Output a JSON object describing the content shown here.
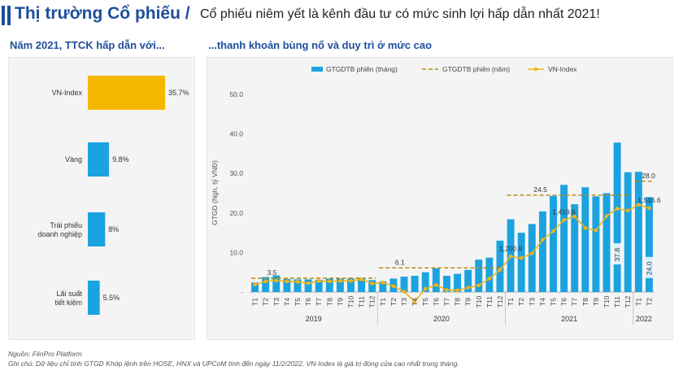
{
  "header": {
    "title": "Thị trường Cổ phiếu /",
    "subtitle": "Cổ phiếu niêm yết là kênh đầu tư có mức sinh lợi hấp dẫn nhất 2021!"
  },
  "left_panel": {
    "title": "Năm 2021, TTCK hấp dẫn với..."
  },
  "right_panel": {
    "title": "...thanh khoản bùng nổ và duy trì ở mức cao"
  },
  "footer": {
    "source": "Nguồn: FiinPro Platform",
    "note": "Ghi chú: Dữ liệu chỉ tính GTGD Khớp lệnh trên HOSE, HNX và UPCoM tính đến ngày 11/2/2022, VN-Index là giá trị đóng cửa cao nhất trong tháng."
  },
  "colors": {
    "accent": "#1f4e9c",
    "bar_blue": "#1aa3e0",
    "bar_gold": "#f5b800",
    "line_gold": "#f0b31b",
    "dash": "#b8860b"
  },
  "chart_data": [
    {
      "type": "bar",
      "orientation": "horizontal",
      "categories": [
        "VN-Index",
        "Vàng",
        "Trái phiếu doanh nghiệp",
        "Lãi suất tiết kiệm"
      ],
      "values": [
        35.7,
        9.8,
        8,
        5.5
      ],
      "value_labels": [
        "35.7%",
        "9.8%",
        "8%",
        "5.5%"
      ],
      "highlight": "VN-Index"
    },
    {
      "type": "bar",
      "ylabel": "GTGD (Ngh. tỷ VNĐ)",
      "ylim": [
        0,
        50
      ],
      "yticks": [
        "-",
        "10.0",
        "20.0",
        "30.0",
        "40.0",
        "50.0"
      ],
      "months": [
        "T1",
        "T2",
        "T3",
        "T4",
        "T5",
        "T6",
        "T7",
        "T8",
        "T9",
        "T10",
        "T11",
        "T12",
        "T1",
        "T2",
        "T3",
        "T4",
        "T5",
        "T6",
        "T7",
        "T8",
        "T9",
        "T10",
        "T11",
        "T12",
        "T1",
        "T2",
        "T3",
        "T4",
        "T5",
        "T6",
        "T7",
        "T8",
        "T9",
        "T10",
        "T11",
        "T12",
        "T1",
        "T2"
      ],
      "years": [
        {
          "label": "2019",
          "start": 0,
          "end": 11
        },
        {
          "label": "2020",
          "start": 12,
          "end": 23
        },
        {
          "label": "2021",
          "start": 24,
          "end": 35
        },
        {
          "label": "2022",
          "start": 36,
          "end": 37
        }
      ],
      "legend": [
        "GTGDTB phiên (tháng)",
        "GTGDTB phiên (năm)",
        "VN-Index"
      ],
      "monthly_value": [
        2.4,
        3.8,
        4.2,
        3.3,
        3.2,
        3.2,
        3.1,
        3.4,
        3.4,
        3.4,
        3.6,
        3.0,
        2.7,
        3.4,
        3.9,
        4.1,
        5.0,
        6.0,
        4.1,
        4.6,
        5.6,
        8.2,
        8.7,
        13.0,
        18.4,
        15.0,
        17.2,
        20.4,
        24.3,
        27.1,
        22.2,
        26.5,
        24.2,
        25.0,
        37.8,
        30.3,
        30.4,
        24.0
      ],
      "yearly_avg": [
        {
          "start": 0,
          "end": 11,
          "value": 3.5,
          "label": "3.5"
        },
        {
          "start": 12,
          "end": 23,
          "value": 6.1,
          "label": "6.1"
        },
        {
          "start": 24,
          "end": 35,
          "value": 24.5,
          "label": "24.5"
        },
        {
          "start": 36,
          "end": 37,
          "value": 28.0,
          "label": "28.0"
        }
      ],
      "vnindex": [
        1.9,
        2.7,
        2.9,
        2.7,
        2.6,
        2.2,
        2.8,
        2.7,
        2.8,
        2.8,
        3.2,
        2.1,
        2.4,
        1.5,
        0.1,
        -2.4,
        0.8,
        1.8,
        0.5,
        0.4,
        1.1,
        1.7,
        3.4,
        5.6,
        9.0,
        8.6,
        9.8,
        13.2,
        15.4,
        18.2,
        19.1,
        16.2,
        15.6,
        19.2,
        21.1,
        20.6,
        22.1,
        21.2
      ],
      "value_labels": [
        {
          "series": "monthly_value",
          "index": 34,
          "text": "37.8"
        },
        {
          "series": "monthly_value",
          "index": 37,
          "text": "24.0"
        },
        {
          "series": "vnindex",
          "index": 24,
          "text": "1,200.9"
        },
        {
          "series": "vnindex",
          "index": 29,
          "text": "1,419.6"
        },
        {
          "series": "vnindex",
          "index": 37,
          "text": "1,516.6"
        }
      ]
    }
  ]
}
